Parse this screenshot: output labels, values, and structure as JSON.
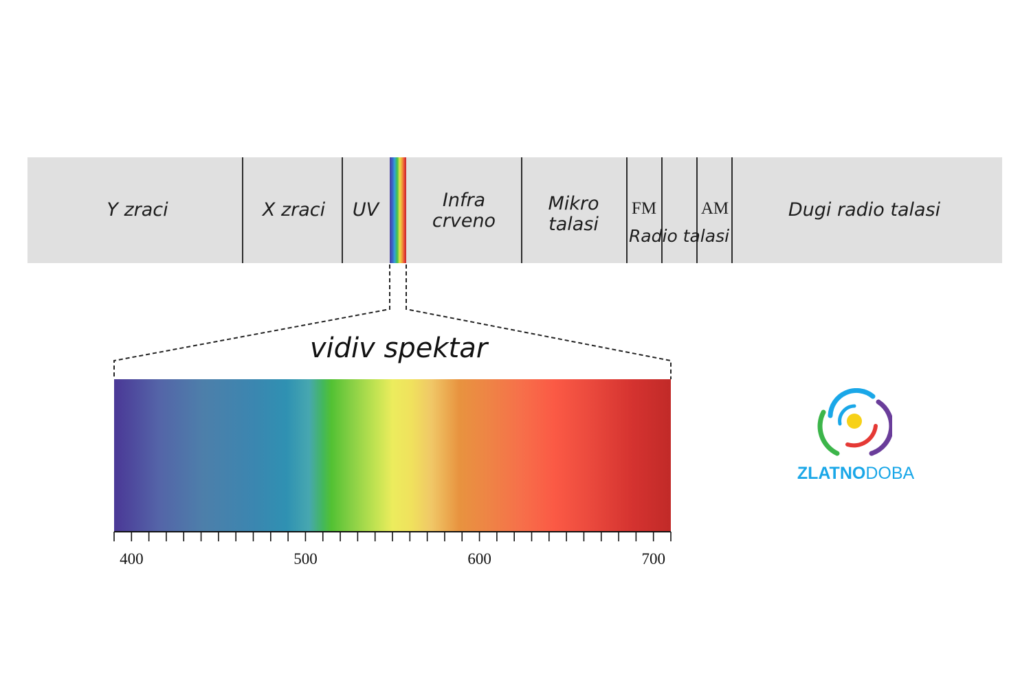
{
  "bands": [
    {
      "key": "gamma",
      "label": "Y zraci"
    },
    {
      "key": "xray",
      "label": "X zraci"
    },
    {
      "key": "uv",
      "label": "UV"
    },
    {
      "key": "infrared",
      "label_line1": "Infra",
      "label_line2": "crveno"
    },
    {
      "key": "microwave",
      "label_line1": "Mikro",
      "label_line2": "talasi"
    },
    {
      "key": "fm",
      "label": "FM"
    },
    {
      "key": "am",
      "label": "AM"
    },
    {
      "key": "radio",
      "label": "Radio talasi"
    },
    {
      "key": "long_radio",
      "label": "Dugi radio talasi"
    }
  ],
  "visible": {
    "title": "vidiv spektar",
    "range": [
      390,
      710
    ],
    "tick_step": 10,
    "major_ticks": [
      400,
      500,
      600,
      700
    ]
  },
  "logo": {
    "part1": "ZLATNO",
    "part2": "DOBA",
    "color_part1": "#1aa7e8",
    "color_part2": "#1aa7e8",
    "mark_colors": {
      "sun": "#f7d117",
      "blue": "#1aa7e8",
      "green": "#3cb54a",
      "red": "#e53935",
      "purple": "#6a3d9a"
    }
  },
  "colors": {
    "band_bg": "#e0e0e0",
    "divider": "#2b2b2b"
  }
}
